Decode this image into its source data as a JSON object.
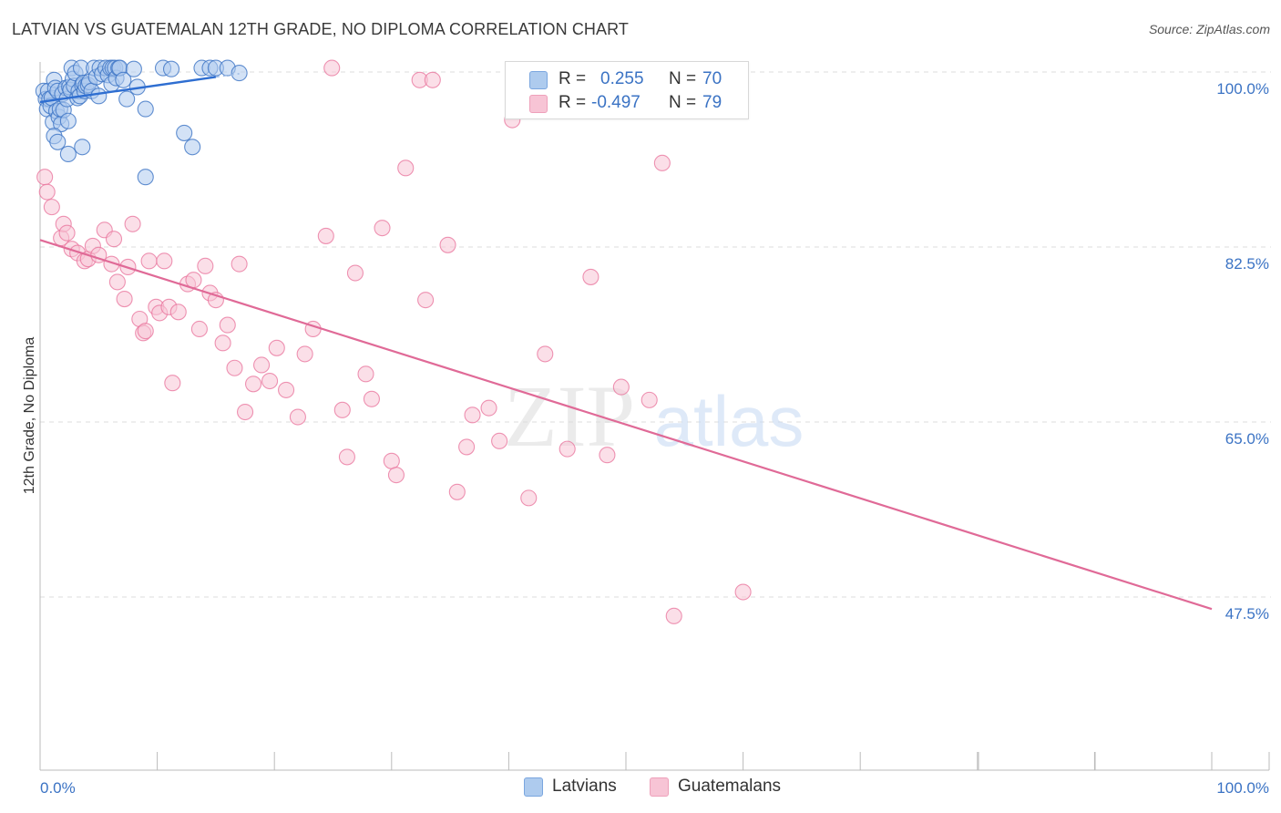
{
  "header": {
    "title": "LATVIAN VS GUATEMALAN 12TH GRADE, NO DIPLOMA CORRELATION CHART",
    "source": "Source: ZipAtlas.com"
  },
  "watermark": {
    "zip": "ZIP",
    "atlas": "atlas"
  },
  "colors": {
    "blue": "#3b73c4",
    "blue_fill": "#aecbee",
    "blue_line": "#2e6ed1",
    "pink": "#e8709a",
    "pink_fill": "#f7c4d5",
    "pink_line": "#e06a97",
    "grid": "#dddddd",
    "tick_label": "#3b73c4"
  },
  "legend": {
    "rows": [
      {
        "r_label": "R =",
        "r_value": "0.255",
        "n_label": "N =",
        "n_value": "70"
      },
      {
        "r_label": "R =",
        "r_value": "-0.497",
        "n_label": "N =",
        "n_value": "79"
      }
    ],
    "bottom": [
      {
        "label": "Latvians"
      },
      {
        "label": "Guatemalans"
      }
    ]
  },
  "chart_data": {
    "type": "scatter",
    "title": "LATVIAN VS GUATEMALAN 12TH GRADE, NO DIPLOMA CORRELATION CHART",
    "xlabel": "",
    "ylabel": "12th Grade, No Diploma",
    "xlim": [
      0,
      100
    ],
    "ylim": [
      30,
      102
    ],
    "x_tick_labels": [
      "0.0%",
      "100.0%"
    ],
    "y_ticks": [
      {
        "value": 100.0,
        "label": "100.0%"
      },
      {
        "value": 82.5,
        "label": "82.5%"
      },
      {
        "value": 65.0,
        "label": "65.0%"
      },
      {
        "value": 47.5,
        "label": "47.5%"
      }
    ],
    "series": [
      {
        "name": "Latvians",
        "R": 0.255,
        "N": 70,
        "trend": {
          "x0": 0,
          "y0": 97.0,
          "x1": 15.0,
          "y1": 99.5,
          "dash_to_x": 17.0
        },
        "points": [
          [
            0.3,
            98.1
          ],
          [
            0.5,
            97.3
          ],
          [
            0.6,
            96.3
          ],
          [
            0.7,
            98.1
          ],
          [
            0.8,
            97.3
          ],
          [
            0.9,
            96.6
          ],
          [
            1.0,
            97.4
          ],
          [
            1.1,
            95.0
          ],
          [
            1.2,
            99.2
          ],
          [
            1.3,
            98.4
          ],
          [
            1.4,
            96.1
          ],
          [
            1.5,
            98.1
          ],
          [
            1.6,
            95.5
          ],
          [
            1.7,
            96.3
          ],
          [
            1.8,
            94.8
          ],
          [
            1.9,
            97.8
          ],
          [
            2.0,
            96.2
          ],
          [
            2.2,
            98.4
          ],
          [
            2.3,
            97.3
          ],
          [
            2.4,
            95.1
          ],
          [
            2.5,
            98.5
          ],
          [
            2.6,
            98.2
          ],
          [
            2.7,
            100.4
          ],
          [
            2.8,
            99.3
          ],
          [
            2.9,
            98.6
          ],
          [
            3.0,
            99.9
          ],
          [
            3.2,
            97.4
          ],
          [
            3.3,
            98.1
          ],
          [
            3.4,
            97.6
          ],
          [
            3.5,
            100.4
          ],
          [
            3.6,
            98.7
          ],
          [
            3.7,
            98.9
          ],
          [
            3.8,
            98.1
          ],
          [
            3.9,
            98.6
          ],
          [
            4.1,
            98.7
          ],
          [
            4.2,
            99.0
          ],
          [
            4.4,
            98.1
          ],
          [
            4.6,
            100.4
          ],
          [
            4.8,
            99.5
          ],
          [
            5.0,
            97.6
          ],
          [
            5.1,
            100.4
          ],
          [
            5.3,
            99.8
          ],
          [
            5.6,
            100.4
          ],
          [
            5.8,
            99.7
          ],
          [
            6.0,
            100.4
          ],
          [
            6.1,
            98.8
          ],
          [
            6.2,
            100.4
          ],
          [
            6.4,
            100.4
          ],
          [
            6.5,
            99.4
          ],
          [
            6.7,
            100.4
          ],
          [
            6.8,
            100.4
          ],
          [
            7.1,
            99.2
          ],
          [
            7.4,
            97.3
          ],
          [
            8.0,
            100.3
          ],
          [
            8.3,
            98.5
          ],
          [
            9.0,
            96.3
          ],
          [
            10.5,
            100.4
          ],
          [
            11.2,
            100.3
          ],
          [
            12.3,
            93.9
          ],
          [
            13.0,
            92.5
          ],
          [
            13.8,
            100.4
          ],
          [
            14.5,
            100.4
          ],
          [
            15.0,
            100.4
          ],
          [
            16.0,
            100.4
          ],
          [
            17.0,
            99.9
          ],
          [
            1.2,
            93.6
          ],
          [
            1.5,
            93.0
          ],
          [
            2.4,
            91.8
          ],
          [
            3.6,
            92.5
          ],
          [
            9.0,
            89.5
          ]
        ]
      },
      {
        "name": "Guatemalans",
        "R": -0.497,
        "N": 79,
        "trend": {
          "x0": 0,
          "y0": 83.2,
          "x1": 100,
          "y1": 46.3
        },
        "points": [
          [
            0.4,
            89.5
          ],
          [
            0.6,
            88.0
          ],
          [
            1.0,
            86.5
          ],
          [
            1.8,
            83.4
          ],
          [
            2.0,
            84.8
          ],
          [
            2.3,
            83.9
          ],
          [
            2.7,
            82.3
          ],
          [
            3.2,
            81.9
          ],
          [
            3.8,
            81.1
          ],
          [
            4.1,
            81.3
          ],
          [
            4.5,
            82.6
          ],
          [
            5.0,
            81.7
          ],
          [
            5.5,
            84.2
          ],
          [
            6.1,
            80.8
          ],
          [
            6.3,
            83.3
          ],
          [
            6.6,
            79.0
          ],
          [
            7.2,
            77.3
          ],
          [
            7.5,
            80.5
          ],
          [
            7.9,
            84.8
          ],
          [
            8.5,
            75.3
          ],
          [
            8.8,
            73.9
          ],
          [
            9.0,
            74.1
          ],
          [
            9.3,
            81.1
          ],
          [
            9.9,
            76.5
          ],
          [
            10.2,
            75.9
          ],
          [
            10.6,
            81.1
          ],
          [
            11.0,
            76.5
          ],
          [
            11.3,
            68.9
          ],
          [
            11.8,
            76.0
          ],
          [
            12.6,
            78.8
          ],
          [
            13.1,
            79.2
          ],
          [
            13.6,
            74.3
          ],
          [
            14.1,
            80.6
          ],
          [
            14.5,
            77.9
          ],
          [
            15.0,
            77.2
          ],
          [
            15.6,
            72.9
          ],
          [
            16.0,
            74.7
          ],
          [
            16.6,
            70.4
          ],
          [
            17.0,
            80.8
          ],
          [
            17.5,
            66.0
          ],
          [
            18.2,
            68.8
          ],
          [
            18.9,
            70.7
          ],
          [
            19.6,
            69.1
          ],
          [
            20.2,
            72.4
          ],
          [
            21.0,
            68.2
          ],
          [
            22.0,
            65.5
          ],
          [
            22.6,
            71.8
          ],
          [
            23.3,
            74.3
          ],
          [
            24.4,
            83.6
          ],
          [
            24.9,
            100.4
          ],
          [
            25.8,
            66.2
          ],
          [
            26.2,
            61.5
          ],
          [
            26.9,
            79.9
          ],
          [
            27.8,
            69.8
          ],
          [
            28.3,
            67.3
          ],
          [
            29.2,
            84.4
          ],
          [
            30.0,
            61.1
          ],
          [
            30.4,
            59.7
          ],
          [
            31.2,
            90.4
          ],
          [
            32.4,
            99.2
          ],
          [
            32.9,
            77.2
          ],
          [
            33.5,
            99.2
          ],
          [
            34.8,
            82.7
          ],
          [
            35.6,
            58.0
          ],
          [
            36.4,
            62.5
          ],
          [
            36.9,
            65.7
          ],
          [
            38.3,
            66.4
          ],
          [
            39.2,
            63.1
          ],
          [
            40.3,
            95.2
          ],
          [
            41.7,
            57.4
          ],
          [
            43.1,
            71.8
          ],
          [
            45.0,
            62.3
          ],
          [
            47.0,
            79.5
          ],
          [
            48.4,
            61.7
          ],
          [
            49.6,
            68.5
          ],
          [
            52.0,
            67.2
          ],
          [
            53.1,
            90.9
          ],
          [
            54.1,
            45.6
          ],
          [
            60.0,
            48.0
          ]
        ]
      }
    ]
  }
}
